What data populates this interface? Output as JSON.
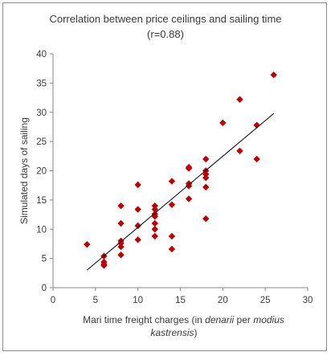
{
  "chart_data": {
    "type": "scatter",
    "title_line1": "Correlation between price ceilings and sailing time",
    "title_line2": "(r=0.88)",
    "xlabel_parts": [
      {
        "text": "Mari time freight charges (in ",
        "italic": false
      },
      {
        "text": "denarii",
        "italic": true
      },
      {
        "text": " per ",
        "italic": false
      },
      {
        "text": "modius",
        "italic": true
      }
    ],
    "xlabel_line2": "kastrensis",
    "xlabel_line2_close": ")",
    "ylabel": "Simulated days of sailing",
    "xlim": [
      0,
      30
    ],
    "ylim": [
      0,
      40
    ],
    "xticks": [
      "0",
      "5",
      "10",
      "15",
      "20",
      "25",
      "30"
    ],
    "yticks": [
      "0",
      "5",
      "10",
      "15",
      "20",
      "25",
      "30",
      "35",
      "40"
    ],
    "marker_color": "#c00000",
    "trendline": {
      "x": [
        4,
        26
      ],
      "y": [
        3.0,
        29.8
      ],
      "color": "#000000"
    },
    "points": [
      {
        "x": 4,
        "y": 7.4
      },
      {
        "x": 6,
        "y": 5.4
      },
      {
        "x": 6,
        "y": 4.4
      },
      {
        "x": 6,
        "y": 4.0
      },
      {
        "x": 6,
        "y": 3.8
      },
      {
        "x": 8,
        "y": 14.0
      },
      {
        "x": 8,
        "y": 11.0
      },
      {
        "x": 8,
        "y": 8.0
      },
      {
        "x": 8,
        "y": 7.6
      },
      {
        "x": 8,
        "y": 7.0
      },
      {
        "x": 8,
        "y": 5.6
      },
      {
        "x": 10,
        "y": 17.6
      },
      {
        "x": 10,
        "y": 13.4
      },
      {
        "x": 10,
        "y": 10.6
      },
      {
        "x": 10,
        "y": 8.2
      },
      {
        "x": 12,
        "y": 14.0
      },
      {
        "x": 12,
        "y": 13.4
      },
      {
        "x": 12,
        "y": 12.6
      },
      {
        "x": 12,
        "y": 12.2
      },
      {
        "x": 12,
        "y": 11.0
      },
      {
        "x": 12,
        "y": 10.0
      },
      {
        "x": 12,
        "y": 8.8
      },
      {
        "x": 14,
        "y": 18.2
      },
      {
        "x": 14,
        "y": 14.2
      },
      {
        "x": 14,
        "y": 8.8
      },
      {
        "x": 14,
        "y": 6.6
      },
      {
        "x": 16,
        "y": 20.6
      },
      {
        "x": 16,
        "y": 20.4
      },
      {
        "x": 16,
        "y": 17.8
      },
      {
        "x": 16,
        "y": 17.4
      },
      {
        "x": 16,
        "y": 15.2
      },
      {
        "x": 18,
        "y": 22.0
      },
      {
        "x": 18,
        "y": 20.0
      },
      {
        "x": 18,
        "y": 19.4
      },
      {
        "x": 18,
        "y": 18.8
      },
      {
        "x": 18,
        "y": 17.2
      },
      {
        "x": 18,
        "y": 11.8
      },
      {
        "x": 20,
        "y": 28.2
      },
      {
        "x": 22,
        "y": 32.2
      },
      {
        "x": 22,
        "y": 23.4
      },
      {
        "x": 24,
        "y": 27.8
      },
      {
        "x": 24,
        "y": 22.0
      },
      {
        "x": 26,
        "y": 36.4
      }
    ]
  }
}
